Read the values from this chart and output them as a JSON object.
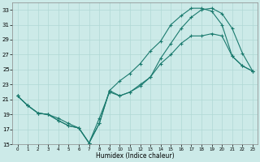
{
  "xlabel": "Humidex (Indice chaleur)",
  "bg_color": "#cceae8",
  "grid_color": "#b0d8d5",
  "line_color": "#1a7a6e",
  "xlim": [
    -0.5,
    23.5
  ],
  "ylim": [
    15,
    34
  ],
  "xticks": [
    0,
    1,
    2,
    3,
    4,
    5,
    6,
    7,
    8,
    9,
    10,
    11,
    12,
    13,
    14,
    15,
    16,
    17,
    18,
    19,
    20,
    21,
    22,
    23
  ],
  "yticks": [
    15,
    17,
    19,
    21,
    23,
    25,
    27,
    29,
    31,
    33
  ],
  "line1_x": [
    0,
    1,
    2,
    3,
    4,
    5,
    6,
    7,
    8,
    9,
    10,
    11,
    12,
    13,
    14,
    15,
    16,
    17,
    18,
    19,
    20,
    21,
    22,
    23
  ],
  "line1_y": [
    21.5,
    20.2,
    19.2,
    19.0,
    18.2,
    17.5,
    17.2,
    15.2,
    17.8,
    22.2,
    21.5,
    22.0,
    23.0,
    24.0,
    25.8,
    27.0,
    28.5,
    29.5,
    29.5,
    29.8,
    29.5,
    26.8,
    25.5,
    24.8
  ],
  "line2_x": [
    0,
    1,
    2,
    3,
    4,
    5,
    6,
    7,
    8,
    9,
    10,
    11,
    12,
    13,
    14,
    15,
    16,
    17,
    18,
    19,
    20,
    21,
    22,
    23
  ],
  "line2_y": [
    21.5,
    20.2,
    19.2,
    19.0,
    18.2,
    17.5,
    17.2,
    15.2,
    17.8,
    22.2,
    23.5,
    24.5,
    25.8,
    27.5,
    28.8,
    31.0,
    32.2,
    33.2,
    33.2,
    32.8,
    31.0,
    26.8,
    25.5,
    24.8
  ],
  "line3_x": [
    0,
    1,
    2,
    3,
    4,
    5,
    6,
    7,
    8,
    9,
    10,
    11,
    12,
    13,
    14,
    15,
    16,
    17,
    18,
    19,
    20,
    21,
    22,
    23
  ],
  "line3_y": [
    21.5,
    20.2,
    19.2,
    19.0,
    18.5,
    17.8,
    17.2,
    15.2,
    18.5,
    22.0,
    21.5,
    22.0,
    22.8,
    24.0,
    26.5,
    28.5,
    30.5,
    32.0,
    33.0,
    33.2,
    32.5,
    30.5,
    27.2,
    24.8
  ]
}
